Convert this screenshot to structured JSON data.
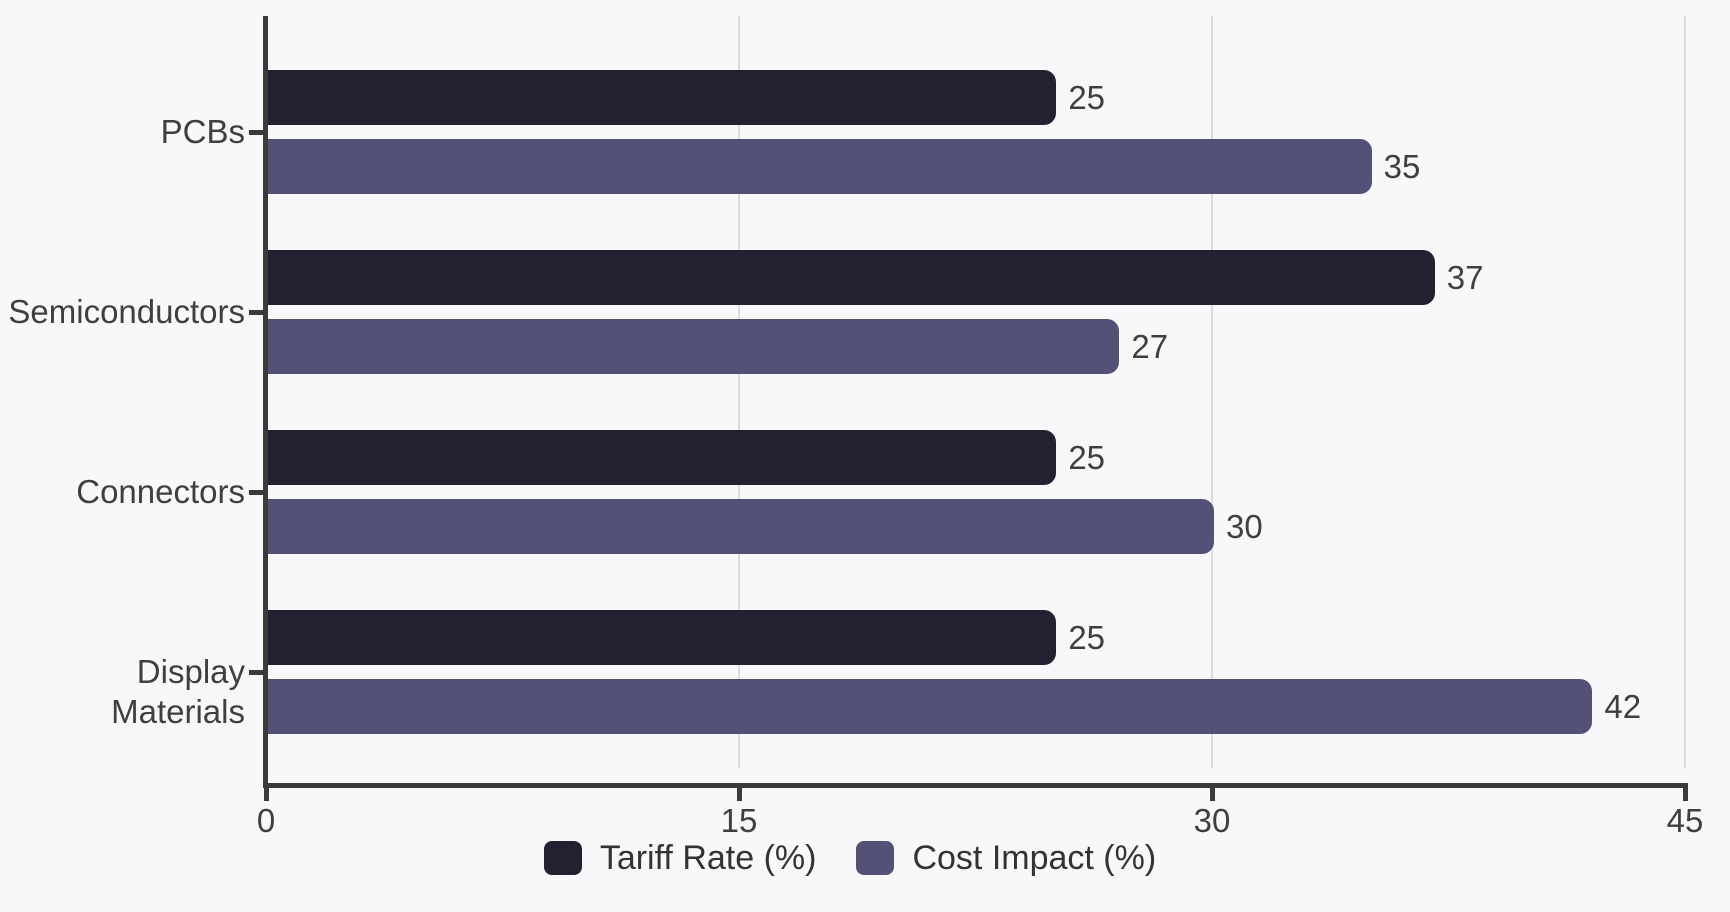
{
  "chart_data": {
    "type": "bar",
    "orientation": "horizontal",
    "title": "",
    "xlabel": "",
    "ylabel": "",
    "categories": [
      "PCBs",
      "Semiconductors",
      "Connectors",
      "Display Materials"
    ],
    "series": [
      {
        "name": "Tariff Rate (%)",
        "color": "#232031",
        "values": [
          25,
          37,
          25,
          25
        ]
      },
      {
        "name": "Cost Impact (%)",
        "color": "#535176",
        "values": [
          35,
          27,
          30,
          42
        ]
      }
    ],
    "xlim": [
      0,
      45
    ],
    "x_ticks": [
      "0",
      "15",
      "30",
      "45"
    ],
    "grid": "vertical-only",
    "legend_position": "bottom-center",
    "value_labels": "at-bar-end"
  },
  "colors": {
    "background": "#F8F8FB",
    "axis": "#3B3B3B",
    "gridline": "#DCDCE0",
    "label_text": "#3F3F3F",
    "legend_text": "#333333"
  }
}
